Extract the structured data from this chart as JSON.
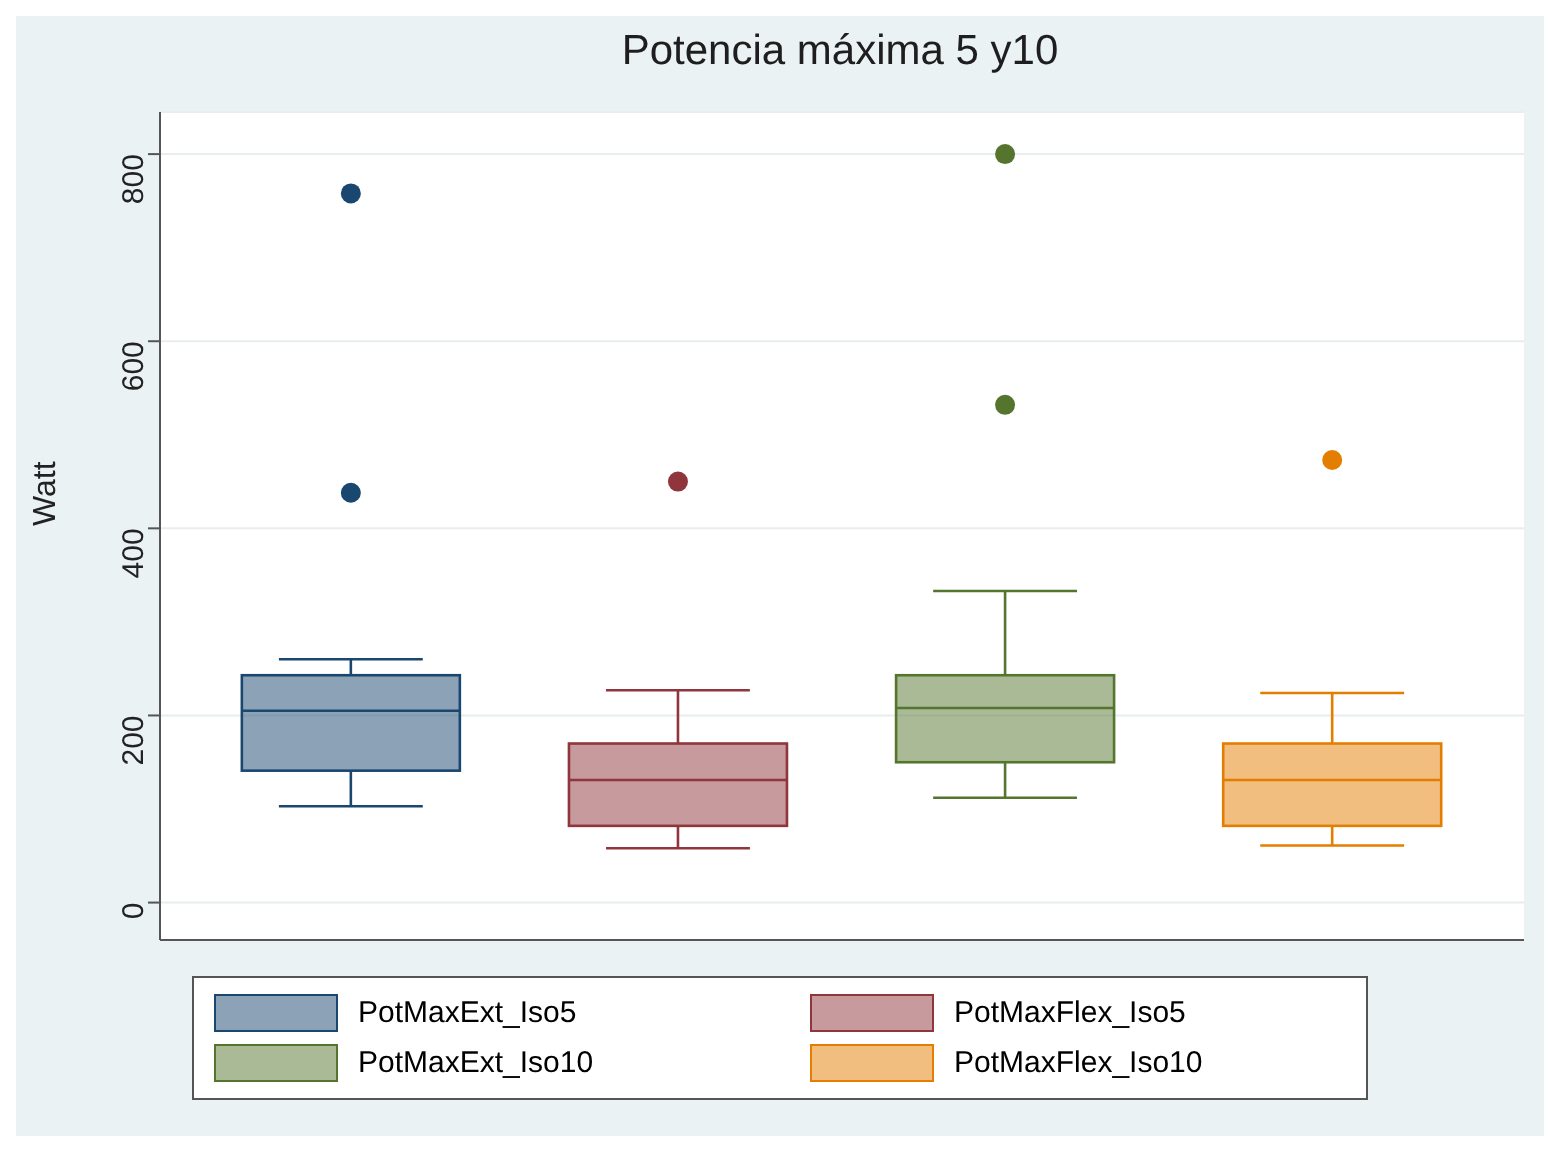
{
  "chart_data": {
    "type": "box",
    "title": "Potencia máxima 5 y10",
    "ylabel": "Watt",
    "categories": [
      null
    ],
    "series": [
      {
        "name": "PotMaxExt_Iso5",
        "color": "#1a476f",
        "boxes": [
          {
            "low": 103,
            "q1": 141,
            "median": 205,
            "q3": 243,
            "high": 260,
            "outliers": [
              438,
              758
            ]
          }
        ]
      },
      {
        "name": "PotMaxFlex_Iso5",
        "color": "#90353b",
        "boxes": [
          {
            "low": 58,
            "q1": 82,
            "median": 131,
            "q3": 170,
            "high": 227,
            "outliers": [
              450
            ]
          }
        ]
      },
      {
        "name": "PotMaxExt_Iso10",
        "color": "#55752f",
        "boxes": [
          {
            "low": 112,
            "q1": 150,
            "median": 208,
            "q3": 243,
            "high": 333,
            "outliers": [
              532,
              800
            ]
          }
        ]
      },
      {
        "name": "PotMaxFlex_Iso10",
        "color": "#e37e00",
        "boxes": [
          {
            "low": 61,
            "q1": 82,
            "median": 131,
            "q3": 170,
            "high": 224,
            "outliers": [
              473
            ]
          }
        ]
      }
    ],
    "ylim": [
      -40,
      845
    ],
    "yticks": [
      0,
      200,
      400,
      600,
      800
    ],
    "grid": "y",
    "legend": "bottom",
    "tick_labels": "y",
    "marker": "circle"
  }
}
